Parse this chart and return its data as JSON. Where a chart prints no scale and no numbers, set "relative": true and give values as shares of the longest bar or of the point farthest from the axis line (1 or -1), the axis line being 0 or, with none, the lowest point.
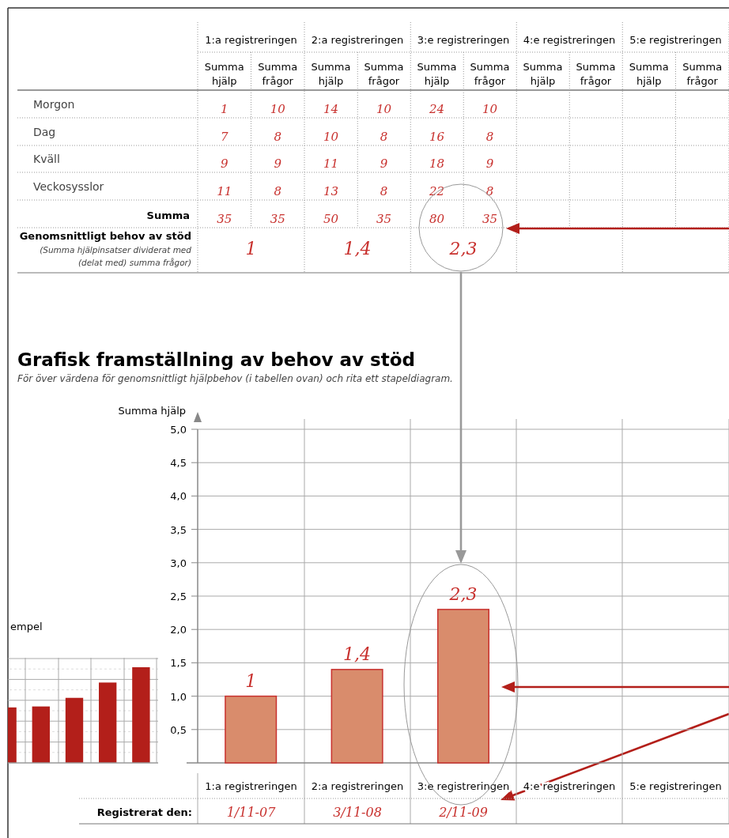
{
  "chart_data": [
    {
      "type": "other",
      "categories": [
        "1:a registreringen",
        "2:a registreringen",
        "3:e registreringen",
        "4:e registreringen",
        "5:e registreringen"
      ],
      "y_categories": [
        "Morgon",
        "Dag",
        "Kväll",
        "Veckosysslor",
        "Summa"
      ],
      "cell_labels": [
        [
          "1",
          "10",
          "14",
          "10",
          "24",
          "10",
          null,
          null,
          null,
          null
        ],
        [
          "7",
          "8",
          "10",
          "8",
          "16",
          "8",
          null,
          null,
          null,
          null
        ],
        [
          "9",
          "9",
          "11",
          "9",
          "18",
          "9",
          null,
          null,
          null,
          null
        ],
        [
          "11",
          "8",
          "13",
          "8",
          "22",
          "8",
          null,
          null,
          null,
          null
        ],
        [
          "35",
          "35",
          "50",
          "35",
          "80",
          "35",
          null,
          null,
          null,
          null
        ]
      ],
      "values": [
        1,
        1.4,
        2.3,
        null,
        null
      ],
      "value_labels": [
        "1",
        "1,4",
        "2,3",
        null,
        null
      ],
      "annotations": [
        "Summa hjälp",
        "Summa frågor",
        "Genomsnittligt behov av stöd",
        "(Summa hjälpinsatser dividerat med",
        "(delat med) summa frågor)"
      ]
    },
    {
      "type": "bar",
      "title": "Grafisk framställning av behov av stöd",
      "subtitle": "För över värdena för genomsnittligt hjälpbehov (i tabellen ovan) och rita ett stapeldiagram.",
      "ylabel": "Summa hjälp",
      "categories": [
        "1:a registreringen",
        "2:a registreringen",
        "3:e registreringen",
        "4:e registreringen",
        "5:e registreringen"
      ],
      "values": [
        1,
        1.4,
        2.3,
        null,
        null
      ],
      "value_labels": [
        "1",
        "1,4",
        "2,3",
        null,
        null
      ],
      "color": "#d98c6c",
      "ylim": [
        0,
        5
      ],
      "yticks": [
        {
          "value": 0.5,
          "label": "0,5"
        },
        {
          "value": 1,
          "label": "1,0"
        },
        {
          "value": 1.5,
          "label": "1,5"
        },
        {
          "value": 2,
          "label": "2,0"
        },
        {
          "value": 2.5,
          "label": "2,5"
        },
        {
          "value": 3,
          "label": "3,0"
        },
        {
          "value": 3.5,
          "label": "3,5"
        },
        {
          "value": 4,
          "label": "4,0"
        },
        {
          "value": 4.5,
          "label": "4,5"
        },
        {
          "value": 5,
          "label": "5,0"
        }
      ],
      "grid": true,
      "annotations": [
        "Registrerat den:",
        "1/11-07",
        "3/11-08",
        "2/11-09"
      ]
    },
    {
      "type": "bar",
      "title": "empel",
      "categories": [
        null,
        null,
        null,
        null,
        null
      ],
      "values": [
        0.58,
        0.59,
        0.68,
        0.84,
        1
      ],
      "relative": true,
      "color": "#b31f1a",
      "grid": true
    }
  ]
}
